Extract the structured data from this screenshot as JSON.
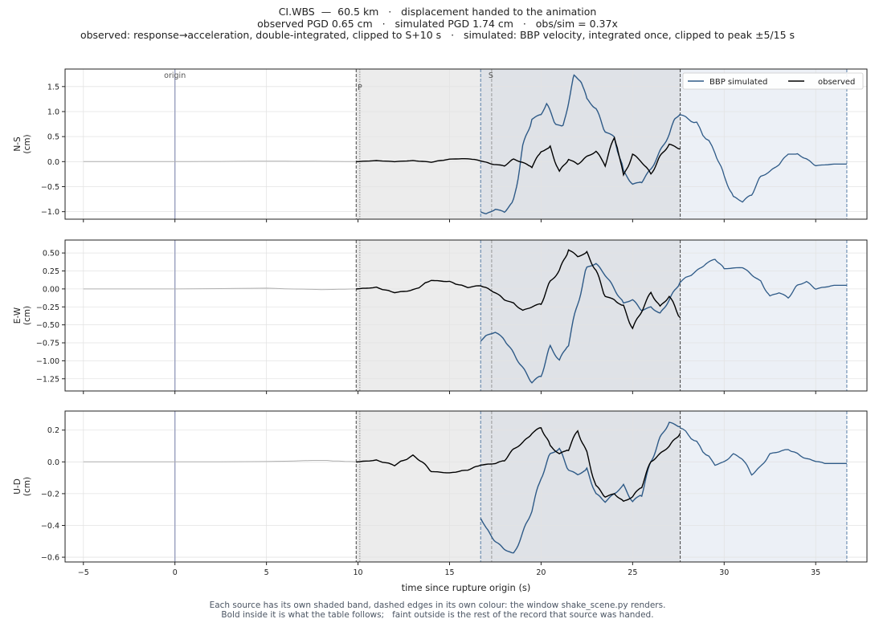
{
  "header": {
    "line1": "CI.WBS  —  60.5 km   ·   displacement handed to the animation",
    "line2": "observed PGD 0.65 cm   ·   simulated PGD 1.74 cm   ·   obs/sim = 0.37x",
    "line3": "observed: response→acceleration, double-integrated, clipped to S+10 s   ·   simulated: BBP velocity, integrated once, clipped to peak ±5/15 s"
  },
  "footer": {
    "line1": "Each source has its own shaded band, dashed edges in its own colour: the window shake_scene.py renders.",
    "line2": "Bold inside it is what the table follows;   faint outside is the rest of the record that source was handed."
  },
  "colors": {
    "simulated": "#2e5a87",
    "observed": "#000000",
    "faint": "#b0b0b0",
    "obs_band": "#ececec",
    "sim_band": "#dce4ee",
    "overlap_band": "#dddfe4",
    "origin_line": "#9aa0c0"
  },
  "chart_data": {
    "type": "line",
    "xlabel": "time since rupture origin (s)",
    "xlim": [
      -6,
      37.8
    ],
    "xticks": [
      -5,
      0,
      5,
      10,
      15,
      20,
      25,
      30,
      35
    ],
    "annotations": {
      "origin": "origin",
      "p": "P",
      "s": "S"
    },
    "origin_time": 0,
    "p_time": 10.1,
    "s_time": 17.3,
    "observed_window": [
      9.9,
      27.6
    ],
    "simulated_window": [
      16.7,
      36.7
    ],
    "legend": {
      "sim": "BBP simulated",
      "obs": "observed",
      "position": "top-right"
    },
    "panels": [
      {
        "ylabel_top": "N-S",
        "ylabel_bottom": "(cm)",
        "ylim": [
          -1.15,
          1.85
        ],
        "yticks": [
          1.5,
          1.0,
          0.5,
          0.0,
          -0.5,
          -1.0
        ],
        "ytick_labels": [
          "1.5",
          "1.0",
          "0.5",
          "0.0",
          "−0.5",
          "−1.0"
        ],
        "observed_faint": [
          [
            -5,
            0
          ],
          [
            0,
            0
          ],
          [
            5,
            0.01
          ],
          [
            8,
            0.005
          ],
          [
            9.9,
            0
          ]
        ],
        "observed": [
          [
            9.9,
            0
          ],
          [
            11,
            0.02
          ],
          [
            12,
            0
          ],
          [
            13,
            0.02
          ],
          [
            14,
            -0.01
          ],
          [
            15,
            0.05
          ],
          [
            16,
            0.06
          ],
          [
            16.7,
            0.02
          ],
          [
            17.3,
            -0.05
          ],
          [
            18,
            -0.08
          ],
          [
            18.5,
            0.05
          ],
          [
            19,
            -0.02
          ],
          [
            19.5,
            -0.1
          ],
          [
            20,
            0.2
          ],
          [
            20.5,
            0.28
          ],
          [
            21,
            -0.2
          ],
          [
            21.5,
            0.05
          ],
          [
            22,
            -0.05
          ],
          [
            22.5,
            0.1
          ],
          [
            23,
            0.2
          ],
          [
            23.5,
            -0.05
          ],
          [
            24,
            0.48
          ],
          [
            24.2,
            0.25
          ],
          [
            24.5,
            -0.3
          ],
          [
            25,
            0.15
          ],
          [
            25.5,
            0.0
          ],
          [
            26,
            -0.25
          ],
          [
            26.5,
            0.1
          ],
          [
            27,
            0.35
          ],
          [
            27.6,
            0.25
          ]
        ],
        "simulated_faint": [
          [
            27.6,
            0.95
          ],
          [
            28.5,
            0.75
          ],
          [
            29.5,
            0.2
          ],
          [
            30,
            -0.3
          ],
          [
            30.5,
            -0.7
          ],
          [
            31,
            -0.8
          ],
          [
            31.5,
            -0.65
          ],
          [
            32,
            -0.3
          ],
          [
            32.5,
            -0.2
          ],
          [
            33,
            -0.05
          ],
          [
            33.5,
            0.15
          ],
          [
            34,
            0.15
          ],
          [
            34.5,
            0.05
          ],
          [
            35,
            -0.08
          ],
          [
            36,
            -0.05
          ],
          [
            36.7,
            -0.05
          ]
        ],
        "simulated": [
          [
            16.7,
            -1.0
          ],
          [
            17,
            -1.05
          ],
          [
            17.5,
            -0.95
          ],
          [
            18,
            -1.0
          ],
          [
            18.5,
            -0.8
          ],
          [
            19,
            0.3
          ],
          [
            19.5,
            0.85
          ],
          [
            20,
            0.95
          ],
          [
            20.3,
            1.15
          ],
          [
            20.8,
            0.75
          ],
          [
            21.2,
            0.7
          ],
          [
            21.5,
            1.2
          ],
          [
            21.8,
            1.72
          ],
          [
            22.2,
            1.6
          ],
          [
            22.5,
            1.25
          ],
          [
            23,
            1.05
          ],
          [
            23.5,
            0.6
          ],
          [
            24,
            0.5
          ],
          [
            24.5,
            -0.2
          ],
          [
            25,
            -0.45
          ],
          [
            25.5,
            -0.4
          ],
          [
            26,
            -0.15
          ],
          [
            26.5,
            0.2
          ],
          [
            27,
            0.55
          ],
          [
            27.3,
            0.85
          ],
          [
            27.6,
            0.95
          ]
        ]
      },
      {
        "ylabel_top": "E-W",
        "ylabel_bottom": "(cm)",
        "ylim": [
          -1.42,
          0.68
        ],
        "yticks": [
          0.5,
          0.25,
          0.0,
          -0.25,
          -0.5,
          -0.75,
          -1.0,
          -1.25
        ],
        "ytick_labels": [
          "0.50",
          "0.25",
          "0.00",
          "−0.25",
          "−0.50",
          "−0.75",
          "−1.00",
          "−1.25"
        ],
        "observed_faint": [
          [
            -5,
            0
          ],
          [
            0,
            0
          ],
          [
            5,
            0.01
          ],
          [
            8,
            -0.01
          ],
          [
            9.9,
            0
          ]
        ],
        "observed": [
          [
            9.9,
            0
          ],
          [
            11,
            0.02
          ],
          [
            12,
            -0.05
          ],
          [
            13,
            -0.02
          ],
          [
            14,
            0.12
          ],
          [
            15,
            0.1
          ],
          [
            16,
            0.02
          ],
          [
            16.7,
            0.05
          ],
          [
            17.5,
            -0.05
          ],
          [
            18,
            -0.15
          ],
          [
            18.5,
            -0.2
          ],
          [
            19,
            -0.3
          ],
          [
            19.5,
            -0.25
          ],
          [
            20,
            -0.2
          ],
          [
            20.5,
            0.1
          ],
          [
            21,
            0.25
          ],
          [
            21.5,
            0.55
          ],
          [
            22,
            0.45
          ],
          [
            22.5,
            0.5
          ],
          [
            23,
            0.25
          ],
          [
            23.5,
            -0.1
          ],
          [
            24,
            -0.15
          ],
          [
            24.5,
            -0.25
          ],
          [
            25,
            -0.55
          ],
          [
            25.5,
            -0.3
          ],
          [
            26,
            -0.05
          ],
          [
            26.5,
            -0.25
          ],
          [
            27,
            -0.1
          ],
          [
            27.6,
            -0.4
          ]
        ],
        "simulated_faint": [
          [
            27.6,
            0.1
          ],
          [
            28.5,
            0.25
          ],
          [
            29,
            0.35
          ],
          [
            29.5,
            0.42
          ],
          [
            30,
            0.28
          ],
          [
            31,
            0.3
          ],
          [
            31.5,
            0.2
          ],
          [
            32,
            0.1
          ],
          [
            32.5,
            -0.1
          ],
          [
            33,
            -0.05
          ],
          [
            33.5,
            -0.12
          ],
          [
            34,
            0.05
          ],
          [
            34.5,
            0.1
          ],
          [
            35,
            0.0
          ],
          [
            36,
            0.05
          ],
          [
            36.7,
            0.05
          ]
        ],
        "simulated": [
          [
            16.7,
            -0.72
          ],
          [
            17,
            -0.65
          ],
          [
            17.5,
            -0.6
          ],
          [
            18,
            -0.7
          ],
          [
            18.5,
            -0.9
          ],
          [
            19,
            -1.1
          ],
          [
            19.5,
            -1.3
          ],
          [
            20,
            -1.2
          ],
          [
            20.5,
            -0.8
          ],
          [
            21,
            -1.0
          ],
          [
            21.5,
            -0.75
          ],
          [
            22,
            -0.2
          ],
          [
            22.5,
            0.3
          ],
          [
            23,
            0.35
          ],
          [
            23.5,
            0.2
          ],
          [
            24,
            0.0
          ],
          [
            24.5,
            -0.2
          ],
          [
            25,
            -0.15
          ],
          [
            25.5,
            -0.3
          ],
          [
            26,
            -0.25
          ],
          [
            26.5,
            -0.35
          ],
          [
            27,
            -0.15
          ],
          [
            27.6,
            0.1
          ]
        ]
      },
      {
        "ylabel_top": "U-D",
        "ylabel_bottom": "(cm)",
        "ylim": [
          -0.63,
          0.32
        ],
        "yticks": [
          0.2,
          0.0,
          -0.2,
          -0.4,
          -0.6
        ],
        "ytick_labels": [
          "0.2",
          "0.0",
          "−0.2",
          "−0.4",
          "−0.6"
        ],
        "observed_faint": [
          [
            -5,
            0
          ],
          [
            0,
            0
          ],
          [
            5,
            0.002
          ],
          [
            8,
            0.01
          ],
          [
            9.9,
            0
          ]
        ],
        "observed": [
          [
            9.9,
            0
          ],
          [
            11,
            0.01
          ],
          [
            12,
            -0.02
          ],
          [
            13,
            0.04
          ],
          [
            13.5,
            0.0
          ],
          [
            14,
            -0.06
          ],
          [
            15,
            -0.07
          ],
          [
            16,
            -0.05
          ],
          [
            16.7,
            -0.02
          ],
          [
            17.5,
            -0.01
          ],
          [
            18,
            0.01
          ],
          [
            18.5,
            0.08
          ],
          [
            19,
            0.12
          ],
          [
            19.5,
            0.18
          ],
          [
            20,
            0.22
          ],
          [
            20.5,
            0.1
          ],
          [
            21,
            0.05
          ],
          [
            21.5,
            0.08
          ],
          [
            22,
            0.2
          ],
          [
            22.5,
            0.05
          ],
          [
            23,
            -0.15
          ],
          [
            23.5,
            -0.22
          ],
          [
            24,
            -0.2
          ],
          [
            24.5,
            -0.25
          ],
          [
            25,
            -0.22
          ],
          [
            25.5,
            -0.15
          ],
          [
            26,
            0.0
          ],
          [
            26.5,
            0.05
          ],
          [
            27,
            0.1
          ],
          [
            27.6,
            0.18
          ]
        ],
        "simulated_faint": [
          [
            27.6,
            0.22
          ],
          [
            28.5,
            0.12
          ],
          [
            29.5,
            -0.02
          ],
          [
            30,
            0.0
          ],
          [
            30.5,
            0.05
          ],
          [
            31,
            0.02
          ],
          [
            31.5,
            -0.08
          ],
          [
            32,
            -0.03
          ],
          [
            32.5,
            0.05
          ],
          [
            33.5,
            0.08
          ],
          [
            34.5,
            0.02
          ],
          [
            35.5,
            -0.01
          ],
          [
            36.7,
            -0.01
          ]
        ],
        "simulated": [
          [
            16.7,
            -0.35
          ],
          [
            17,
            -0.42
          ],
          [
            17.5,
            -0.5
          ],
          [
            18,
            -0.55
          ],
          [
            18.5,
            -0.58
          ],
          [
            19,
            -0.45
          ],
          [
            19.5,
            -0.3
          ],
          [
            20,
            -0.1
          ],
          [
            20.5,
            0.05
          ],
          [
            21,
            0.08
          ],
          [
            21.5,
            -0.05
          ],
          [
            22,
            -0.08
          ],
          [
            22.5,
            -0.05
          ],
          [
            23,
            -0.2
          ],
          [
            23.5,
            -0.25
          ],
          [
            24,
            -0.2
          ],
          [
            24.5,
            -0.15
          ],
          [
            25,
            -0.25
          ],
          [
            25.5,
            -0.2
          ],
          [
            26,
            0.0
          ],
          [
            26.5,
            0.15
          ],
          [
            27,
            0.25
          ],
          [
            27.6,
            0.22
          ]
        ]
      }
    ]
  }
}
